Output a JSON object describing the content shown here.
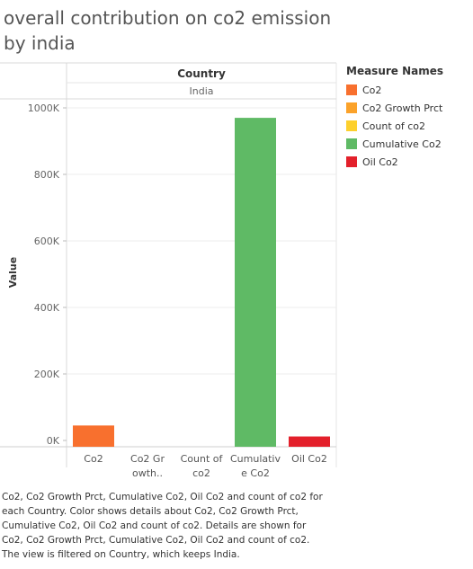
{
  "page": {
    "title": "overall contribution on co2 emission by india",
    "caption": "Co2, Co2 Growth Prct, Cumulative Co2, Oil Co2 and count of co2 for each Country.  Color shows details about Co2, Co2 Growth Prct, Cumulative Co2, Oil Co2 and count of co2.  Details are shown for Co2, Co2 Growth Prct, Cumulative Co2, Oil Co2 and count of co2. The view is filtered on Country, which keeps India."
  },
  "chart_data": {
    "type": "bar",
    "header_label": "Country",
    "header_value": "India",
    "ylabel": "Value",
    "xlabel": "",
    "ylim": [
      0,
      1000000
    ],
    "yticks": [
      {
        "value": 0,
        "label": "0K"
      },
      {
        "value": 200000,
        "label": "200K"
      },
      {
        "value": 400000,
        "label": "400K"
      },
      {
        "value": 600000,
        "label": "600K"
      },
      {
        "value": 800000,
        "label": "800K"
      },
      {
        "value": 1000000,
        "label": "1000K"
      }
    ],
    "categories": [
      {
        "name": "Co2",
        "lines": [
          "Co2"
        ],
        "value": 45000,
        "color": "#f8702e"
      },
      {
        "name": "Co2 Growth Prct",
        "lines": [
          "Co2 Gr",
          "owth.."
        ],
        "value": 0,
        "color": "#fba22a"
      },
      {
        "name": "Count of co2",
        "lines": [
          "Count of",
          "co2"
        ],
        "value": 0,
        "color": "#fdd02d"
      },
      {
        "name": "Cumulative Co2",
        "lines": [
          "Cumulativ",
          "e Co2"
        ],
        "value": 970000,
        "color": "#5fba65"
      },
      {
        "name": "Oil Co2",
        "lines": [
          "Oil Co2"
        ],
        "value": 12000,
        "color": "#e3202b"
      }
    ],
    "grid": true,
    "legend": {
      "title": "Measure Names",
      "placement": "right",
      "items": [
        {
          "label": "Co2",
          "color": "#f8702e"
        },
        {
          "label": "Co2 Growth Prct",
          "color": "#fba22a"
        },
        {
          "label": "Count of co2",
          "color": "#fdd02d"
        },
        {
          "label": "Cumulative Co2",
          "color": "#5fba65"
        },
        {
          "label": "Oil Co2",
          "color": "#e3202b"
        }
      ]
    }
  }
}
